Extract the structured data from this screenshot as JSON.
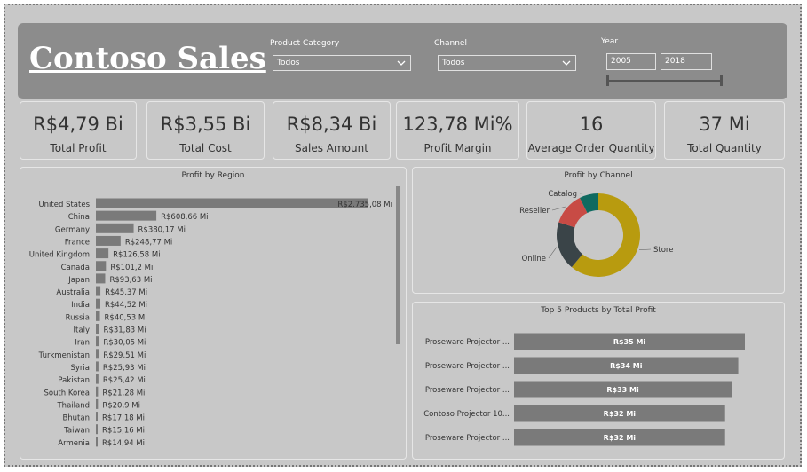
{
  "header": {
    "title": "Contoso Sales"
  },
  "filters": {
    "product_category": {
      "label": "Product Category",
      "value": "Todos"
    },
    "channel": {
      "label": "Channel",
      "value": "Todos"
    },
    "year": {
      "label": "Year",
      "from": "2005",
      "to": "2018"
    }
  },
  "kpis": [
    {
      "value": "R$4,79 Bi",
      "label": "Total Profit"
    },
    {
      "value": "R$3,55 Bi",
      "label": "Total Cost"
    },
    {
      "value": "R$8,34 Bi",
      "label": "Sales Amount"
    },
    {
      "value": "123,78 Mi%",
      "label": "Profit Margin"
    },
    {
      "value": "16",
      "label": "Average Order Quantity"
    },
    {
      "value": "37 Mi",
      "label": "Total Quantity"
    }
  ],
  "chart_data": [
    {
      "type": "bar",
      "orientation": "horizontal",
      "title": "Profit by Region",
      "categories": [
        "United States",
        "China",
        "Germany",
        "France",
        "United Kingdom",
        "Canada",
        "Japan",
        "Australia",
        "India",
        "Russia",
        "Italy",
        "Iran",
        "Turkmenistan",
        "Syria",
        "Pakistan",
        "South Korea",
        "Thailand",
        "Bhutan",
        "Taiwan",
        "Armenia"
      ],
      "values": [
        2735.08,
        608.66,
        380.17,
        248.77,
        126.58,
        101.2,
        93.63,
        45.37,
        44.52,
        40.53,
        31.83,
        30.05,
        29.51,
        25.93,
        25.42,
        21.28,
        20.9,
        17.18,
        15.16,
        14.94
      ],
      "labels": [
        "R$2.735,08 Mi",
        "R$608,66 Mi",
        "R$380,17 Mi",
        "R$248,77 Mi",
        "R$126,58 Mi",
        "R$101,2 Mi",
        "R$93,63 Mi",
        "R$45,37 Mi",
        "R$44,52 Mi",
        "R$40,53 Mi",
        "R$31,83 Mi",
        "R$30,05 Mi",
        "R$29,51 Mi",
        "R$25,93 Mi",
        "R$25,42 Mi",
        "R$21,28 Mi",
        "R$20,9 Mi",
        "R$17,18 Mi",
        "R$15,16 Mi",
        "R$14,94 Mi"
      ],
      "bar_color": "#7a7a7a"
    },
    {
      "type": "pie",
      "variant": "donut",
      "title": "Profit by Channel",
      "categories": [
        "Store",
        "Online",
        "Reseller",
        "Catalog"
      ],
      "values": [
        58,
        18,
        12,
        7
      ],
      "colors": [
        "#b89b0f",
        "#3a4448",
        "#c84b45",
        "#0f6a60"
      ]
    },
    {
      "type": "bar",
      "orientation": "horizontal",
      "title": "Top 5 Products by Total Profit",
      "categories": [
        "Proseware Projector ...",
        "Proseware Projector ...",
        "Proseware Projector ...",
        "Contoso Projector 10...",
        "Proseware Projector ..."
      ],
      "values": [
        35,
        34,
        33,
        32,
        32
      ],
      "labels": [
        "R$35 Mi",
        "R$34 Mi",
        "R$33 Mi",
        "R$32 Mi",
        "R$32 Mi"
      ],
      "bar_color": "#7a7a7a"
    }
  ]
}
